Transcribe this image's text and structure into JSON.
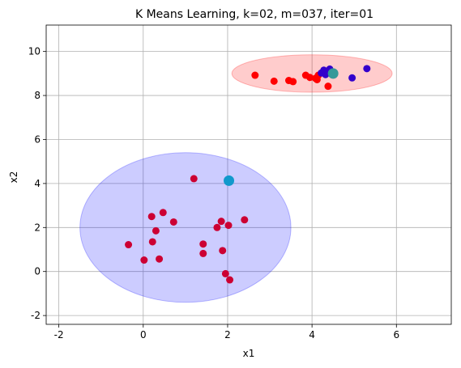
{
  "chart_data": {
    "type": "scatter",
    "title": "K Means Learning, k=02, m=037, iter=01",
    "xlabel": "x1",
    "ylabel": "x2",
    "xlim": [
      -2.3,
      7.3
    ],
    "ylim": [
      -2.4,
      11.2
    ],
    "grid": true,
    "xticks": [
      -2,
      0,
      2,
      4,
      6
    ],
    "yticks": [
      -2,
      0,
      2,
      4,
      6,
      8,
      10
    ],
    "ellipses": [
      {
        "center": [
          1.0,
          2.0
        ],
        "rx": 2.5,
        "ry": 3.4,
        "fill": "#0000ff",
        "opacity": 0.2
      },
      {
        "center": [
          4.0,
          9.0
        ],
        "rx": 1.9,
        "ry": 0.85,
        "fill": "#ff0000",
        "opacity": 0.2
      }
    ],
    "series": [
      {
        "color": "#ff0000",
        "points": [
          [
            2.65,
            8.92
          ],
          [
            3.1,
            8.65
          ],
          [
            3.45,
            8.68
          ],
          [
            3.55,
            8.63
          ],
          [
            3.85,
            8.92
          ],
          [
            3.95,
            8.82
          ],
          [
            4.08,
            8.78
          ],
          [
            4.12,
            8.72
          ],
          [
            4.15,
            8.92
          ],
          [
            4.38,
            8.42
          ]
        ]
      },
      {
        "color": "#3300cc",
        "points": [
          [
            4.22,
            9.02
          ],
          [
            4.28,
            9.15
          ],
          [
            4.32,
            8.95
          ],
          [
            4.38,
            9.05
          ],
          [
            4.42,
            9.2
          ],
          [
            4.47,
            9.08
          ],
          [
            4.95,
            8.8
          ],
          [
            5.3,
            9.22
          ]
        ]
      },
      {
        "color": "#cc0033",
        "points": [
          [
            1.2,
            4.22
          ],
          [
            0.2,
            2.5
          ],
          [
            0.47,
            2.68
          ],
          [
            0.72,
            2.25
          ],
          [
            0.3,
            1.85
          ],
          [
            0.22,
            1.35
          ],
          [
            -0.35,
            1.22
          ],
          [
            0.02,
            0.52
          ],
          [
            0.38,
            0.57
          ],
          [
            1.42,
            1.25
          ],
          [
            1.42,
            0.82
          ],
          [
            1.75,
            2.0
          ],
          [
            1.85,
            2.28
          ],
          [
            2.02,
            2.1
          ],
          [
            2.4,
            2.35
          ],
          [
            1.88,
            0.95
          ],
          [
            1.95,
            -0.1
          ],
          [
            2.05,
            -0.38
          ]
        ]
      }
    ],
    "centroids": [
      {
        "point": [
          4.5,
          9.0
        ],
        "color": "#339999"
      },
      {
        "point": [
          2.03,
          4.13
        ],
        "color": "#1199cc"
      }
    ]
  }
}
